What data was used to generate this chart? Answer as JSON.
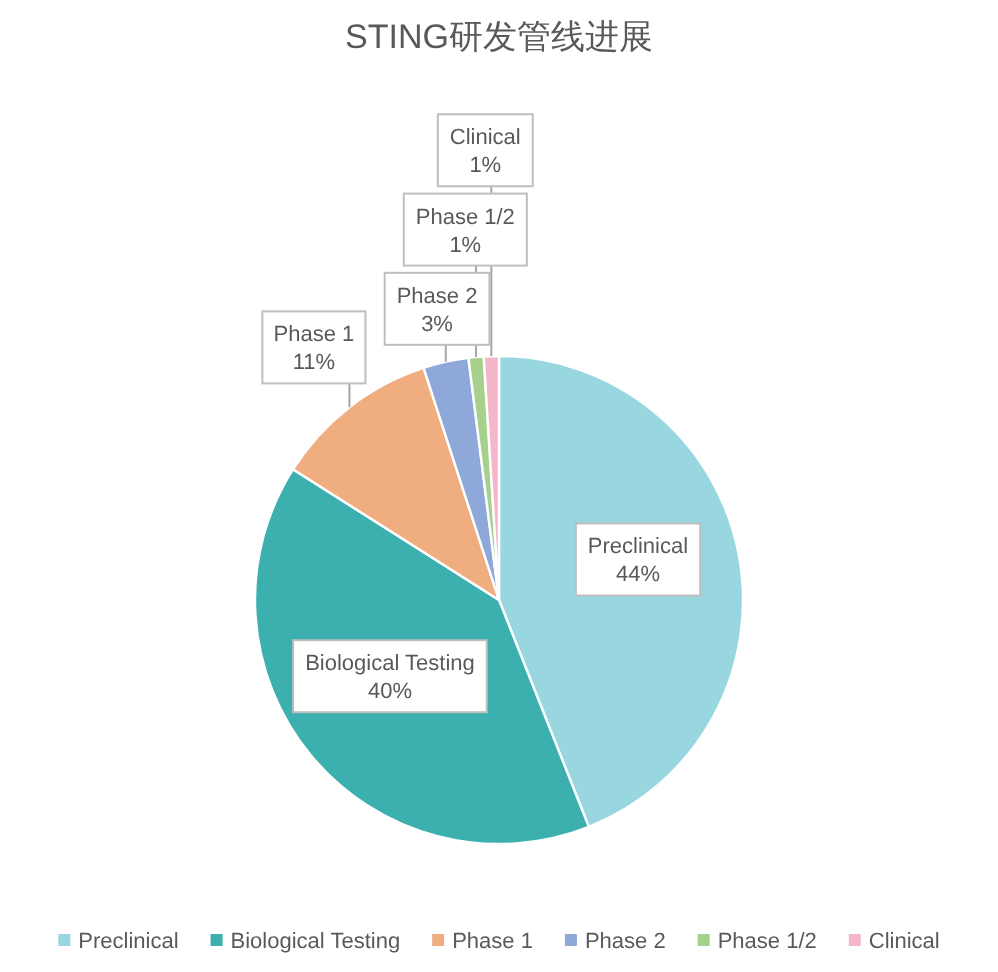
{
  "chart_data": {
    "type": "pie",
    "title": "STING研发管线进展",
    "categories": [
      "Preclinical",
      "Biological Testing",
      "Phase 1",
      "Phase 2",
      "Phase 1/2",
      "Clinical"
    ],
    "values": [
      44,
      40,
      11,
      3,
      1,
      1
    ],
    "colors": [
      "#98d6e0",
      "#3cb0af",
      "#f0ae80",
      "#8ea8da",
      "#a8d08d",
      "#f4b7ca"
    ],
    "value_labels": [
      "44%",
      "40%",
      "11%",
      "3%",
      "1%",
      "1%"
    ],
    "legend": "bottom"
  }
}
